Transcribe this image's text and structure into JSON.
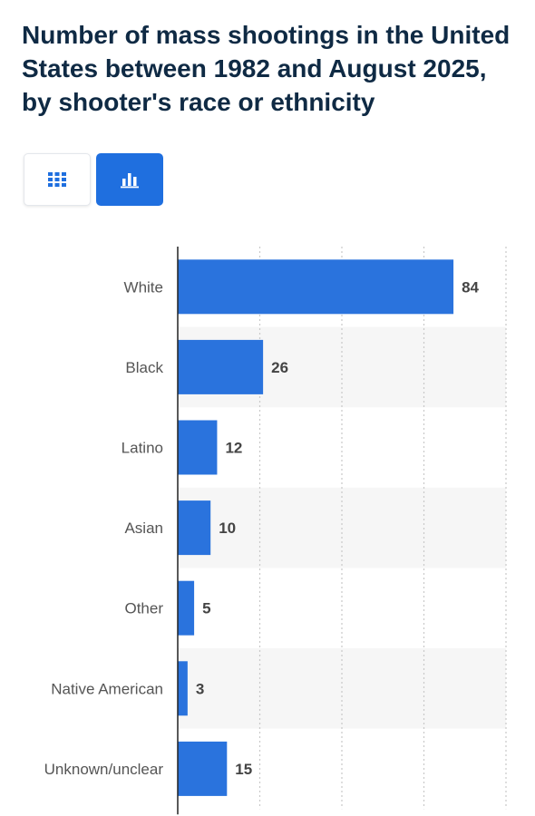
{
  "title": "Number of mass shootings in the United States between 1982 and August 2025, by shooter's race or ethnicity",
  "view_toggle": {
    "table_icon": "grid-icon",
    "chart_icon": "bar-chart-icon",
    "active": "chart"
  },
  "colors": {
    "bar": "#2a73dd",
    "accent": "#1f6fdf",
    "title": "#0f2a44",
    "band": "#f6f6f6"
  },
  "chart_data": {
    "type": "bar",
    "orientation": "horizontal",
    "categories": [
      "White",
      "Black",
      "Latino",
      "Asian",
      "Other",
      "Native American",
      "Unknown/unclear"
    ],
    "values": [
      84,
      26,
      12,
      10,
      5,
      3,
      15
    ],
    "xlim": [
      0,
      100
    ],
    "grid": true,
    "data_labels": true
  }
}
